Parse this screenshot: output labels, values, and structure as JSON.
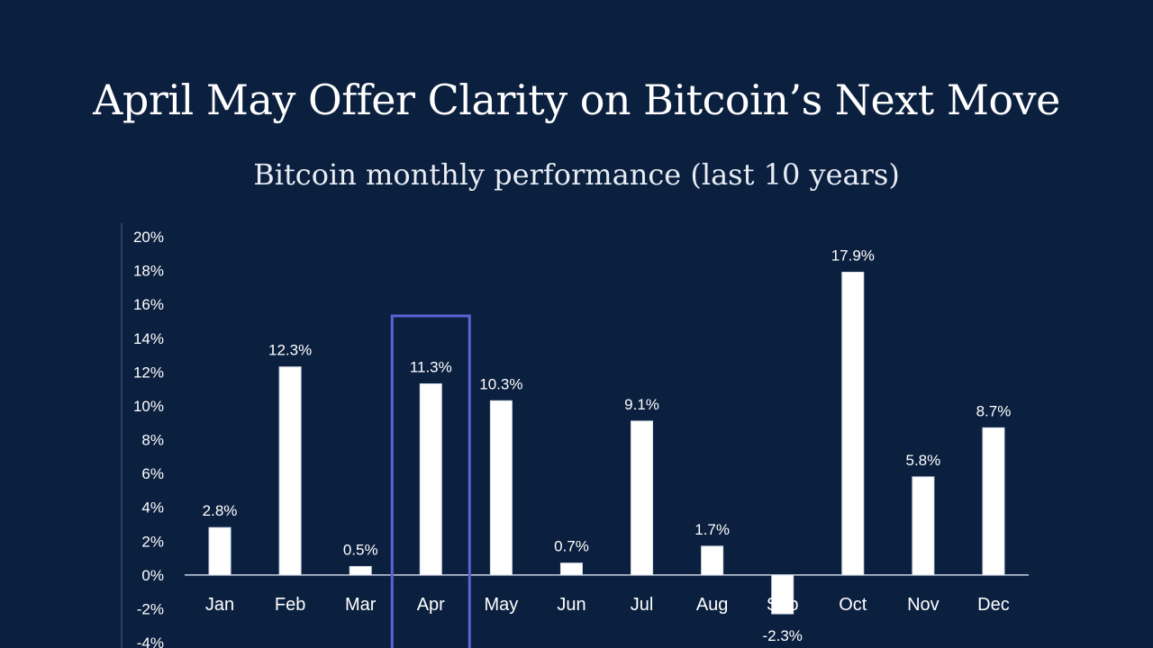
{
  "colors": {
    "background": "#0b1f3f",
    "bar": "#ffffff",
    "highlight": "#5b63d9",
    "text": "#ffffff"
  },
  "chart_data": {
    "type": "bar",
    "title": "April May Offer Clarity on Bitcoin’s Next Move",
    "subtitle": "Bitcoin monthly performance (last 10 years)",
    "xlabel": "",
    "ylabel": "",
    "ylim": [
      -4,
      20
    ],
    "yticks": [
      -4,
      -2,
      0,
      2,
      4,
      6,
      8,
      10,
      12,
      14,
      16,
      18,
      20
    ],
    "ytick_labels": [
      "-4%",
      "-2%",
      "0%",
      "2%",
      "4%",
      "6%",
      "8%",
      "10%",
      "12%",
      "14%",
      "16%",
      "18%",
      "20%"
    ],
    "grid": false,
    "categories": [
      "Jan",
      "Feb",
      "Mar",
      "Apr",
      "May",
      "Jun",
      "Jul",
      "Aug",
      "Sep",
      "Oct",
      "Nov",
      "Dec"
    ],
    "values": [
      2.8,
      12.3,
      0.5,
      11.3,
      10.3,
      0.7,
      9.1,
      1.7,
      -2.3,
      17.9,
      5.8,
      8.7
    ],
    "value_labels": [
      "2.8%",
      "12.3%",
      "0.5%",
      "11.3%",
      "10.3%",
      "0.7%",
      "9.1%",
      "1.7%",
      "-2.3%",
      "17.9%",
      "5.8%",
      "8.7%"
    ],
    "highlight": "Apr"
  }
}
